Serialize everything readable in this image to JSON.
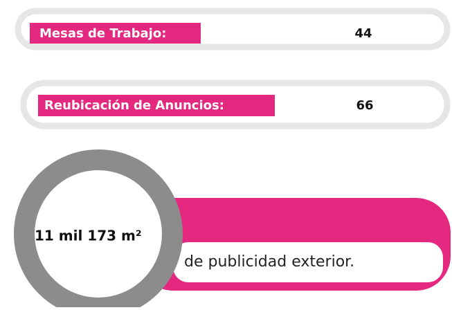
{
  "stats": [
    {
      "label": "Mesas de Trabajo:",
      "value": 44
    },
    {
      "label": "Reubicación de Anuncios:",
      "value": 66
    }
  ],
  "highlight": {
    "amount": "11 mil 173 m²",
    "caption": "de publicidad exterior."
  }
}
